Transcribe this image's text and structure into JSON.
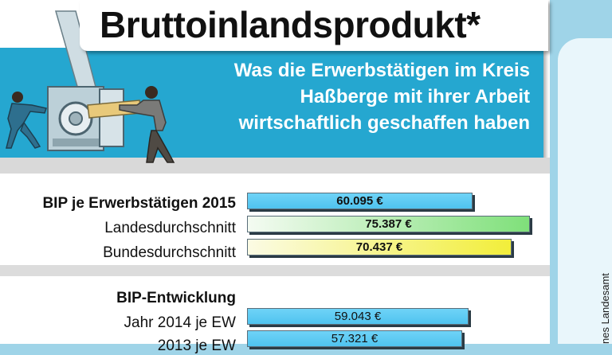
{
  "header": {
    "title": "Bruttoinlandsprodukt*",
    "subtitle_lines": [
      "Was die Erwerbstätigen im Kreis",
      "Haßberge mit ihrer Arbeit",
      "wirtschaftlich geschaffen haben"
    ]
  },
  "side_panel": {
    "source_text": "nes Landesamt"
  },
  "colors": {
    "banner": "#25a7d0",
    "bar_blue": "#4fc3ef",
    "bar_green": "#7fe07a",
    "bar_yellow": "#f2ee3a"
  },
  "chart_data": [
    {
      "type": "bar",
      "orientation": "horizontal",
      "group_title": "BIP je Erwerbstätigen 2015",
      "categories": [
        "BIP je Erwerbstätigen 2015",
        "Landesdurchschnitt",
        "Bundesdurchschnitt"
      ],
      "values": [
        60095,
        75387,
        70437
      ],
      "value_labels": [
        "60.095 €",
        "75.387 €",
        "70.437 €"
      ]
    },
    {
      "type": "bar",
      "orientation": "horizontal",
      "group_title": "BIP-Entwicklung",
      "categories": [
        "Jahr 2014 je EW",
        "2013 je EW"
      ],
      "values": [
        59043,
        57321
      ],
      "value_labels": [
        "59.043 €",
        "57.321 €"
      ]
    }
  ]
}
